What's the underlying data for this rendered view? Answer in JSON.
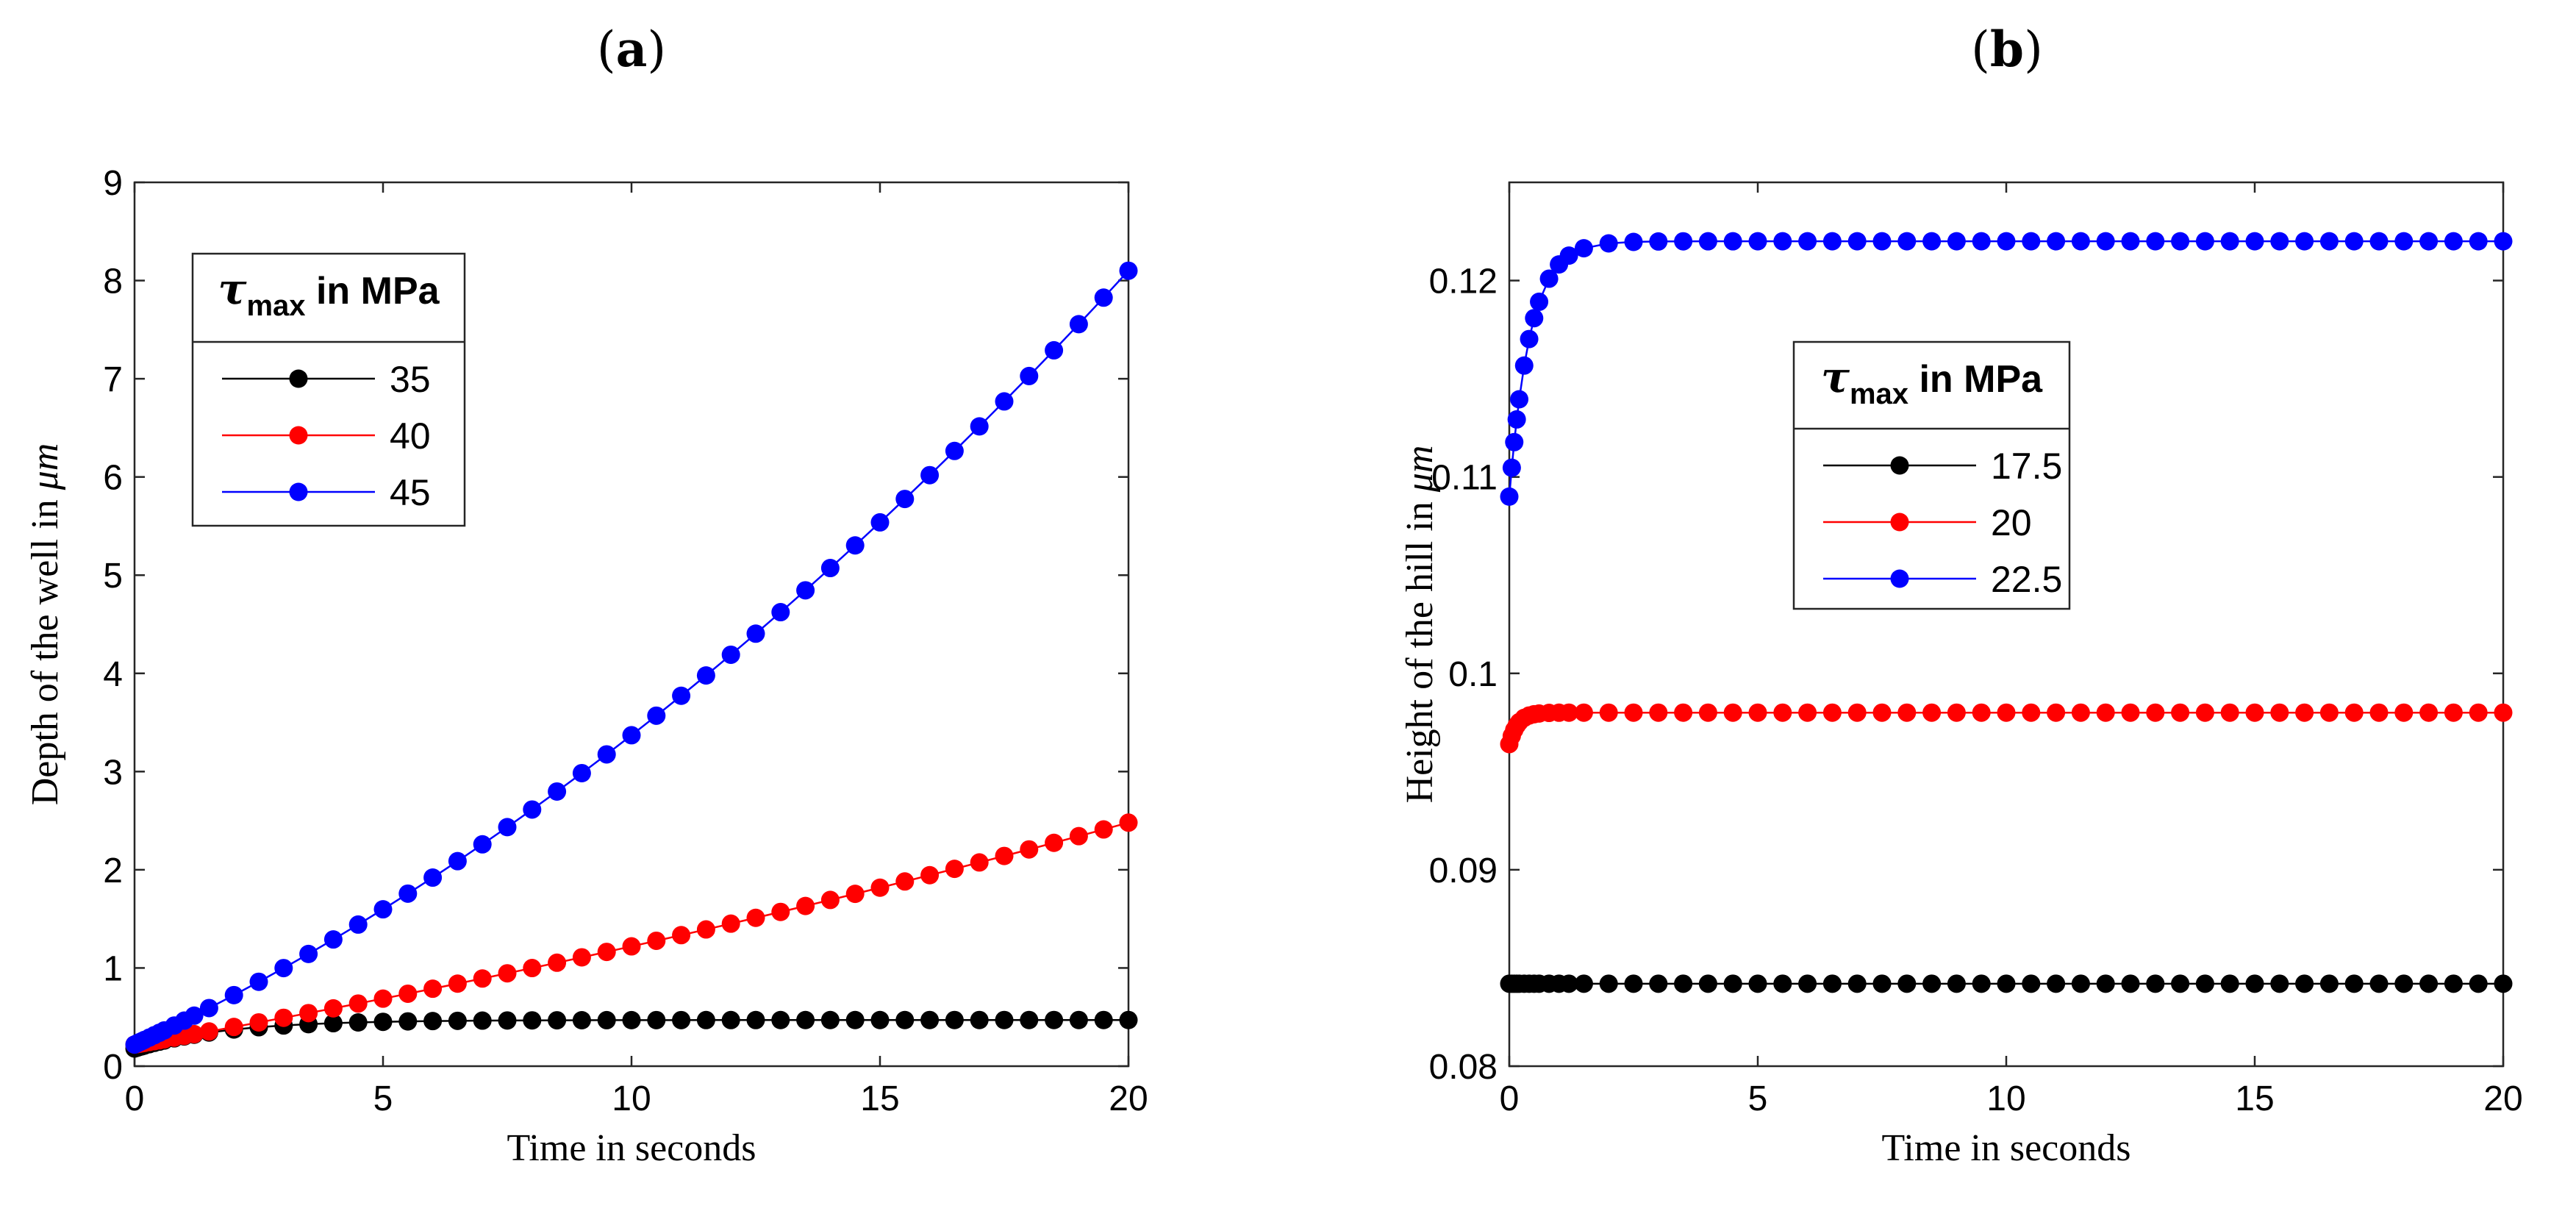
{
  "chart_data": [
    {
      "type": "line",
      "panel_label": "a",
      "title": "(a)",
      "xlabel": "Time in seconds",
      "ylabel_prefix": "Depth of the well in ",
      "ylabel_unit": "μm",
      "xlim": [
        0,
        20
      ],
      "ylim": [
        0,
        9
      ],
      "xticks": [
        0,
        5,
        10,
        15,
        20
      ],
      "yticks": [
        0,
        1,
        2,
        3,
        4,
        5,
        6,
        7,
        8,
        9
      ],
      "legend": {
        "title_symbol": "τ",
        "title_subscript": "max",
        "title_rest": " in MPa",
        "position": "upper-left"
      },
      "series": [
        {
          "name": "35",
          "color": "#000000",
          "model": "sat",
          "y0": 0.18,
          "ymax": 0.47,
          "rate": 0.55
        },
        {
          "name": "40",
          "color": "#ff0000",
          "model": "poly",
          "y0": 0.22,
          "c1": 0.087,
          "c2": 0.0013
        },
        {
          "name": "45",
          "color": "#0000ff",
          "model": "poly",
          "y0": 0.22,
          "c1": 0.236,
          "c2": 0.0079
        }
      ]
    },
    {
      "type": "line",
      "panel_label": "b",
      "title": "(b)",
      "xlabel": "Time in seconds",
      "ylabel_prefix": "Height of the hill in ",
      "ylabel_unit": "μm",
      "xlim": [
        0,
        20
      ],
      "ylim": [
        0.08,
        0.125
      ],
      "xticks": [
        0,
        5,
        10,
        15,
        20
      ],
      "yticks": [
        0.08,
        0.09,
        0.1,
        0.11,
        0.12
      ],
      "ytick_labels": [
        "0.08",
        "0.09",
        "0.1",
        "0.11",
        "0.12"
      ],
      "legend": {
        "title_symbol": "τ",
        "title_subscript": "max",
        "title_rest": " in MPa",
        "position": "center"
      },
      "series": [
        {
          "name": "17.5",
          "color": "#000000",
          "model": "sat",
          "y0": 0.0842,
          "ymax": 0.0842,
          "rate": 5
        },
        {
          "name": "20",
          "color": "#ff0000",
          "model": "sat",
          "y0": 0.0964,
          "ymax": 0.098,
          "rate": 6
        },
        {
          "name": "22.5",
          "color": "#0000ff",
          "model": "sat",
          "y0": 0.109,
          "ymax": 0.122,
          "rate": 2.4
        }
      ]
    }
  ]
}
